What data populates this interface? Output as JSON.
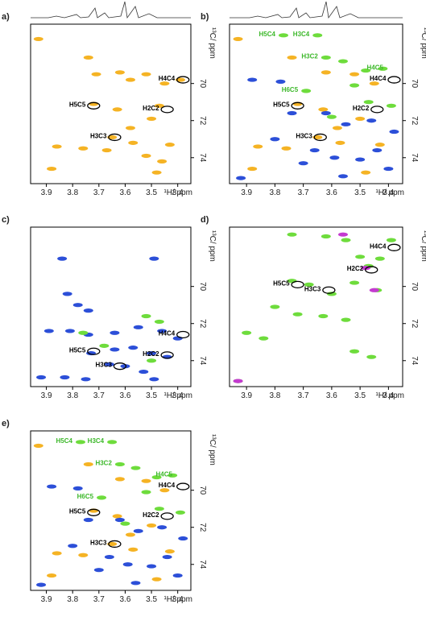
{
  "chart_data": [
    {
      "type": "scatter",
      "panel": "a)",
      "xlabel": "¹H/ ppm",
      "ylabel": "¹³C/ ppm",
      "xlim": [
        3.96,
        3.35
      ],
      "ylim": [
        66.8,
        75.4
      ],
      "xticks": [
        3.9,
        3.8,
        3.7,
        3.6,
        3.5,
        3.4
      ],
      "yticks": [
        70,
        72,
        74
      ],
      "series": [
        {
          "color": "#f5b324",
          "x": [
            3.93,
            3.74,
            3.71,
            3.62,
            3.58,
            3.52,
            3.45,
            3.39,
            3.72,
            3.63,
            3.47,
            3.5,
            3.58,
            3.65,
            3.86,
            3.76,
            3.67,
            3.57,
            3.43,
            3.52,
            3.48,
            3.88,
            3.46
          ],
          "y": [
            67.6,
            68.6,
            69.5,
            69.4,
            69.8,
            69.5,
            70.0,
            69.8,
            71.1,
            71.4,
            71.2,
            71.9,
            72.4,
            72.9,
            73.4,
            73.5,
            73.6,
            73.2,
            73.3,
            73.9,
            74.8,
            74.6,
            74.2
          ]
        }
      ],
      "annotations": [
        {
          "text": "H4C4",
          "x": 3.38,
          "y": 69.8,
          "color": "#000"
        },
        {
          "text": "H5C5",
          "x": 3.72,
          "y": 71.2,
          "color": "#000"
        },
        {
          "text": "H2C2",
          "x": 3.44,
          "y": 71.4,
          "color": "#000"
        },
        {
          "text": "H3C3",
          "x": 3.64,
          "y": 72.9,
          "color": "#000"
        }
      ]
    },
    {
      "type": "scatter",
      "panel": "b)",
      "xlabel": "¹H/ ppm",
      "ylabel": "¹³C/ ppm",
      "xlim": [
        3.96,
        3.35
      ],
      "ylim": [
        66.8,
        75.4
      ],
      "xticks": [
        3.9,
        3.8,
        3.7,
        3.6,
        3.5,
        3.4
      ],
      "yticks": [
        70,
        72,
        74
      ],
      "series": [
        {
          "color": "#f5b324",
          "x": [
            3.93,
            3.74,
            3.62,
            3.52,
            3.45,
            3.72,
            3.63,
            3.5,
            3.58,
            3.65,
            3.86,
            3.76,
            3.57,
            3.43,
            3.48,
            3.88
          ],
          "y": [
            67.6,
            68.6,
            69.4,
            69.5,
            70.0,
            71.1,
            71.4,
            71.9,
            72.4,
            72.9,
            73.4,
            73.5,
            73.2,
            73.3,
            74.8,
            74.6
          ]
        },
        {
          "color": "#6edc3c",
          "x": [
            3.77,
            3.65,
            3.62,
            3.56,
            3.48,
            3.42,
            3.69,
            3.47,
            3.39,
            3.52,
            3.6
          ],
          "y": [
            67.4,
            67.4,
            68.6,
            68.8,
            69.3,
            69.2,
            70.4,
            71.0,
            71.2,
            70.1,
            71.8
          ]
        },
        {
          "color": "#2c4fd8",
          "x": [
            3.88,
            3.78,
            3.74,
            3.62,
            3.55,
            3.46,
            3.38,
            3.8,
            3.66,
            3.59,
            3.5,
            3.4,
            3.92,
            3.7,
            3.56,
            3.44
          ],
          "y": [
            69.8,
            69.9,
            71.6,
            71.6,
            72.2,
            72.0,
            72.6,
            73.0,
            73.6,
            74.0,
            74.1,
            74.6,
            75.1,
            74.3,
            75.0,
            73.6
          ]
        }
      ],
      "annotations": [
        {
          "text": "H5C4",
          "x": 3.77,
          "y": 67.4,
          "color": "#3cb82a"
        },
        {
          "text": "H3C4",
          "x": 3.65,
          "y": 67.4,
          "color": "#3cb82a"
        },
        {
          "text": "H3C2",
          "x": 3.62,
          "y": 68.6,
          "color": "#3cb82a"
        },
        {
          "text": "H6C5",
          "x": 3.69,
          "y": 70.4,
          "color": "#3cb82a"
        },
        {
          "text": "H4C5",
          "x": 3.39,
          "y": 69.2,
          "color": "#3cb82a"
        },
        {
          "text": "H4C4",
          "x": 3.38,
          "y": 69.8,
          "color": "#000"
        },
        {
          "text": "H5C5",
          "x": 3.72,
          "y": 71.2,
          "color": "#000"
        },
        {
          "text": "H2C2",
          "x": 3.44,
          "y": 71.4,
          "color": "#000"
        },
        {
          "text": "H3C3",
          "x": 3.64,
          "y": 72.9,
          "color": "#000"
        }
      ]
    },
    {
      "type": "scatter",
      "panel": "c)",
      "xlabel": "¹H/ ppm",
      "ylabel": "¹³C/ ppm",
      "xlim": [
        3.96,
        3.35
      ],
      "ylim": [
        66.8,
        75.4
      ],
      "xticks": [
        3.9,
        3.8,
        3.7,
        3.6,
        3.5,
        3.4
      ],
      "yticks": [
        70,
        72,
        74
      ],
      "series": [
        {
          "color": "#2c4fd8",
          "x": [
            3.84,
            3.49,
            3.82,
            3.78,
            3.74,
            3.89,
            3.81,
            3.74,
            3.64,
            3.55,
            3.46,
            3.4,
            3.73,
            3.64,
            3.57,
            3.5,
            3.44,
            3.66,
            3.6,
            3.53,
            3.92,
            3.83,
            3.75,
            3.49
          ],
          "y": [
            68.5,
            68.5,
            70.4,
            71.0,
            71.3,
            72.4,
            72.4,
            72.6,
            72.5,
            72.2,
            72.4,
            72.8,
            73.6,
            73.4,
            73.3,
            73.6,
            73.8,
            74.2,
            74.3,
            74.6,
            74.9,
            74.9,
            75.0,
            75.0
          ]
        },
        {
          "color": "#6edc3c",
          "x": [
            3.76,
            3.68,
            3.52,
            3.47,
            3.5
          ],
          "y": [
            72.5,
            73.2,
            71.6,
            71.9,
            74.0
          ]
        }
      ],
      "annotations": [
        {
          "text": "H4C4",
          "x": 3.38,
          "y": 72.6,
          "color": "#000"
        },
        {
          "text": "H5C5",
          "x": 3.72,
          "y": 73.5,
          "color": "#000"
        },
        {
          "text": "H2C2",
          "x": 3.44,
          "y": 73.7,
          "color": "#000"
        },
        {
          "text": "H3C3",
          "x": 3.62,
          "y": 74.3,
          "color": "#000"
        }
      ]
    },
    {
      "type": "scatter",
      "panel": "d)",
      "xlabel": "¹H/ ppm",
      "ylabel": "¹³C/ ppm",
      "xlim": [
        3.96,
        3.35
      ],
      "ylim": [
        66.8,
        75.4
      ],
      "xticks": [
        3.9,
        3.8,
        3.7,
        3.6,
        3.5,
        3.4
      ],
      "yticks": [
        70,
        72,
        74
      ],
      "series": [
        {
          "color": "#6edc3c",
          "x": [
            3.74,
            3.62,
            3.55,
            3.39,
            3.5,
            3.43,
            3.47,
            3.74,
            3.68,
            3.6,
            3.52,
            3.44,
            3.8,
            3.72,
            3.63,
            3.55,
            3.9,
            3.84,
            3.52,
            3.46,
            3.93
          ],
          "y": [
            67.2,
            67.3,
            67.5,
            67.5,
            68.4,
            68.5,
            68.9,
            69.7,
            69.9,
            70.4,
            69.8,
            70.2,
            71.1,
            71.5,
            71.6,
            71.8,
            72.5,
            72.8,
            73.5,
            73.8,
            75.1
          ]
        },
        {
          "color": "#c43ad0",
          "x": [
            3.56,
            3.48,
            3.45,
            3.93
          ],
          "y": [
            67.2,
            69.0,
            70.2,
            75.1
          ]
        }
      ],
      "annotations": [
        {
          "text": "H4C4",
          "x": 3.38,
          "y": 67.9,
          "color": "#000"
        },
        {
          "text": "H2C2",
          "x": 3.46,
          "y": 69.1,
          "color": "#000"
        },
        {
          "text": "H5C5",
          "x": 3.72,
          "y": 69.9,
          "color": "#000"
        },
        {
          "text": "H3C3",
          "x": 3.61,
          "y": 70.2,
          "color": "#000"
        }
      ]
    },
    {
      "type": "scatter",
      "panel": "e)",
      "xlabel": "¹H/ ppm",
      "ylabel": "¹³C/ ppm",
      "xlim": [
        3.96,
        3.35
      ],
      "ylim": [
        66.8,
        75.4
      ],
      "xticks": [
        3.9,
        3.8,
        3.7,
        3.6,
        3.5,
        3.4
      ],
      "yticks": [
        70,
        72,
        74
      ],
      "series": [
        {
          "color": "#f5b324",
          "x": [
            3.93,
            3.74,
            3.62,
            3.52,
            3.45,
            3.72,
            3.63,
            3.5,
            3.58,
            3.65,
            3.86,
            3.76,
            3.57,
            3.43,
            3.48,
            3.88
          ],
          "y": [
            67.6,
            68.6,
            69.4,
            69.5,
            70.0,
            71.1,
            71.4,
            71.9,
            72.4,
            72.9,
            73.4,
            73.5,
            73.2,
            73.3,
            74.8,
            74.6
          ]
        },
        {
          "color": "#6edc3c",
          "x": [
            3.77,
            3.65,
            3.62,
            3.56,
            3.48,
            3.42,
            3.69,
            3.47,
            3.39,
            3.52,
            3.6
          ],
          "y": [
            67.4,
            67.4,
            68.6,
            68.8,
            69.3,
            69.2,
            70.4,
            71.0,
            71.2,
            70.1,
            71.8
          ]
        },
        {
          "color": "#2c4fd8",
          "x": [
            3.88,
            3.78,
            3.74,
            3.62,
            3.55,
            3.46,
            3.38,
            3.8,
            3.66,
            3.59,
            3.5,
            3.4,
            3.92,
            3.7,
            3.56,
            3.44
          ],
          "y": [
            69.8,
            69.9,
            71.6,
            71.6,
            72.2,
            72.0,
            72.6,
            73.0,
            73.6,
            74.0,
            74.1,
            74.6,
            75.1,
            74.3,
            75.0,
            73.6
          ]
        }
      ],
      "annotations": [
        {
          "text": "H5C4",
          "x": 3.77,
          "y": 67.4,
          "color": "#3cb82a"
        },
        {
          "text": "H3C4",
          "x": 3.65,
          "y": 67.4,
          "color": "#3cb82a"
        },
        {
          "text": "H3C2",
          "x": 3.62,
          "y": 68.6,
          "color": "#3cb82a"
        },
        {
          "text": "H6C5",
          "x": 3.69,
          "y": 70.4,
          "color": "#3cb82a"
        },
        {
          "text": "H4C5",
          "x": 3.39,
          "y": 69.2,
          "color": "#3cb82a"
        },
        {
          "text": "H4C4",
          "x": 3.38,
          "y": 69.8,
          "color": "#000"
        },
        {
          "text": "H5C5",
          "x": 3.72,
          "y": 71.2,
          "color": "#000"
        },
        {
          "text": "H2C2",
          "x": 3.44,
          "y": 71.4,
          "color": "#000"
        },
        {
          "text": "H3C3",
          "x": 3.64,
          "y": 72.9,
          "color": "#000"
        }
      ]
    }
  ]
}
